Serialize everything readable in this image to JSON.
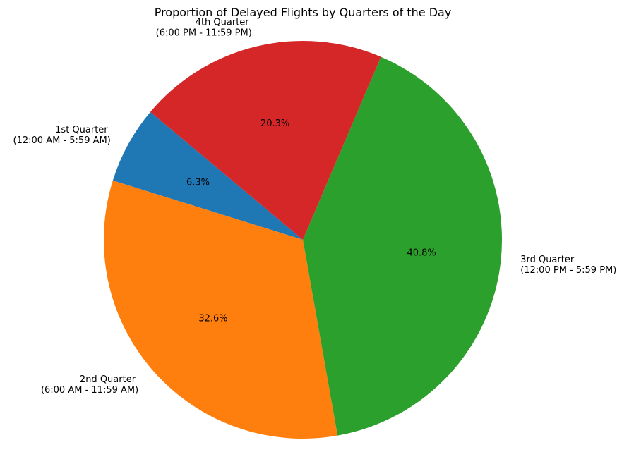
{
  "chart_data": {
    "type": "pie",
    "title": "Proportion of Delayed Flights by Quarters of the Day",
    "start_angle_deg": 140,
    "direction": "counterclockwise",
    "slices": [
      {
        "name": "1st Quarter",
        "label_line1": "1st Quarter",
        "label_line2": "(12:00 AM - 5:59 AM)",
        "value": 6.3,
        "pct_text": "6.3%",
        "color": "#1f77b4"
      },
      {
        "name": "2nd Quarter",
        "label_line1": "2nd Quarter",
        "label_line2": "(6:00 AM - 11:59 AM)",
        "value": 32.6,
        "pct_text": "32.6%",
        "color": "#ff7f0e"
      },
      {
        "name": "3rd Quarter",
        "label_line1": "3rd Quarter",
        "label_line2": "(12:00 PM - 5:59 PM)",
        "value": 40.8,
        "pct_text": "40.8%",
        "color": "#2ca02c"
      },
      {
        "name": "4th Quarter",
        "label_line1": "4th Quarter",
        "label_line2": "(6:00 PM - 11:59 PM)",
        "value": 20.3,
        "pct_text": "20.3%",
        "color": "#d62728"
      }
    ]
  }
}
